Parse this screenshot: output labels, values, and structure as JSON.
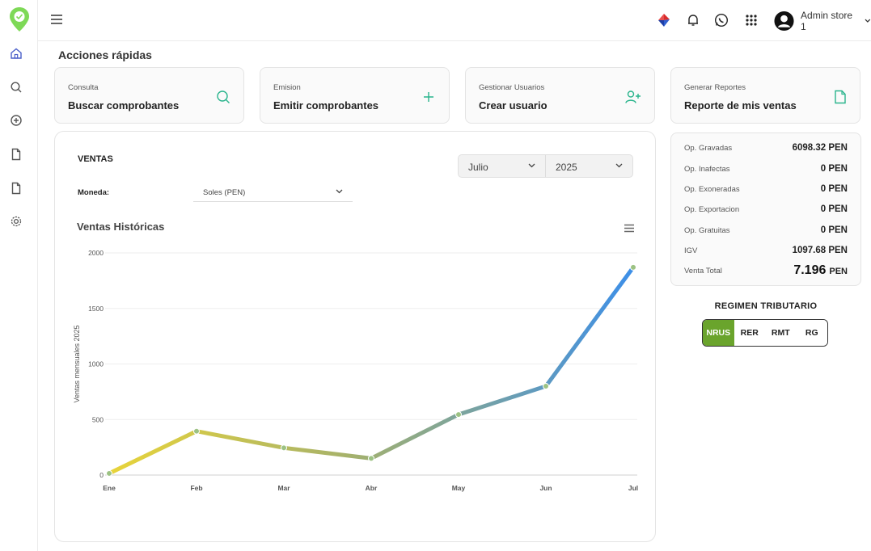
{
  "header": {
    "admin_name": "Admin store 1"
  },
  "quick_actions": {
    "title": "Acciones rápidas",
    "cards": [
      {
        "sub": "Consulta",
        "main": "Buscar comprobantes",
        "icon": "search-icon"
      },
      {
        "sub": "Emision",
        "main": "Emitir comprobantes",
        "icon": "plus-icon"
      },
      {
        "sub": "Gestionar Usuarios",
        "main": "Crear usuario",
        "icon": "user-plus-icon"
      },
      {
        "sub": "Generar Reportes",
        "main": "Reporte de mis ventas",
        "icon": "file-icon"
      }
    ]
  },
  "ventas": {
    "title": "VENTAS",
    "month": "Julio",
    "year": "2025",
    "moneda_label": "Moneda:",
    "moneda_value": "Soles (PEN)"
  },
  "chart_data": {
    "type": "line",
    "title": "Ventas Históricas",
    "xlabel": "",
    "ylabel": "Ventas mensuales 2025",
    "categories": [
      "Ene",
      "Feb",
      "Mar",
      "Abr",
      "May",
      "Jun",
      "Jul"
    ],
    "values": [
      15,
      395,
      245,
      150,
      545,
      800,
      1870
    ],
    "yticks": [
      "0",
      "500",
      "1000",
      "1500",
      "2000"
    ],
    "ylim": [
      0,
      2000
    ],
    "grid": true,
    "gradient_colors": [
      "#e8d43a",
      "#3d8fe8"
    ]
  },
  "summary": {
    "rows": [
      {
        "label": "Op. Gravadas",
        "value": "6098.32 PEN"
      },
      {
        "label": "Op. Inafectas",
        "value": "0 PEN"
      },
      {
        "label": "Op. Exoneradas",
        "value": "0 PEN"
      },
      {
        "label": "Op. Exportacion",
        "value": "0 PEN"
      },
      {
        "label": "Op. Gratuitas",
        "value": "0 PEN"
      },
      {
        "label": "IGV",
        "value": "1097.68 PEN"
      }
    ],
    "total_label": "Venta Total",
    "total_value": "7.196",
    "total_currency": "PEN"
  },
  "regimen": {
    "title": "REGIMEN TRIBUTARIO",
    "options": [
      "NRUS",
      "RER",
      "RMT",
      "RG"
    ],
    "selected": "NRUS",
    "accent": "#6aa42c"
  }
}
